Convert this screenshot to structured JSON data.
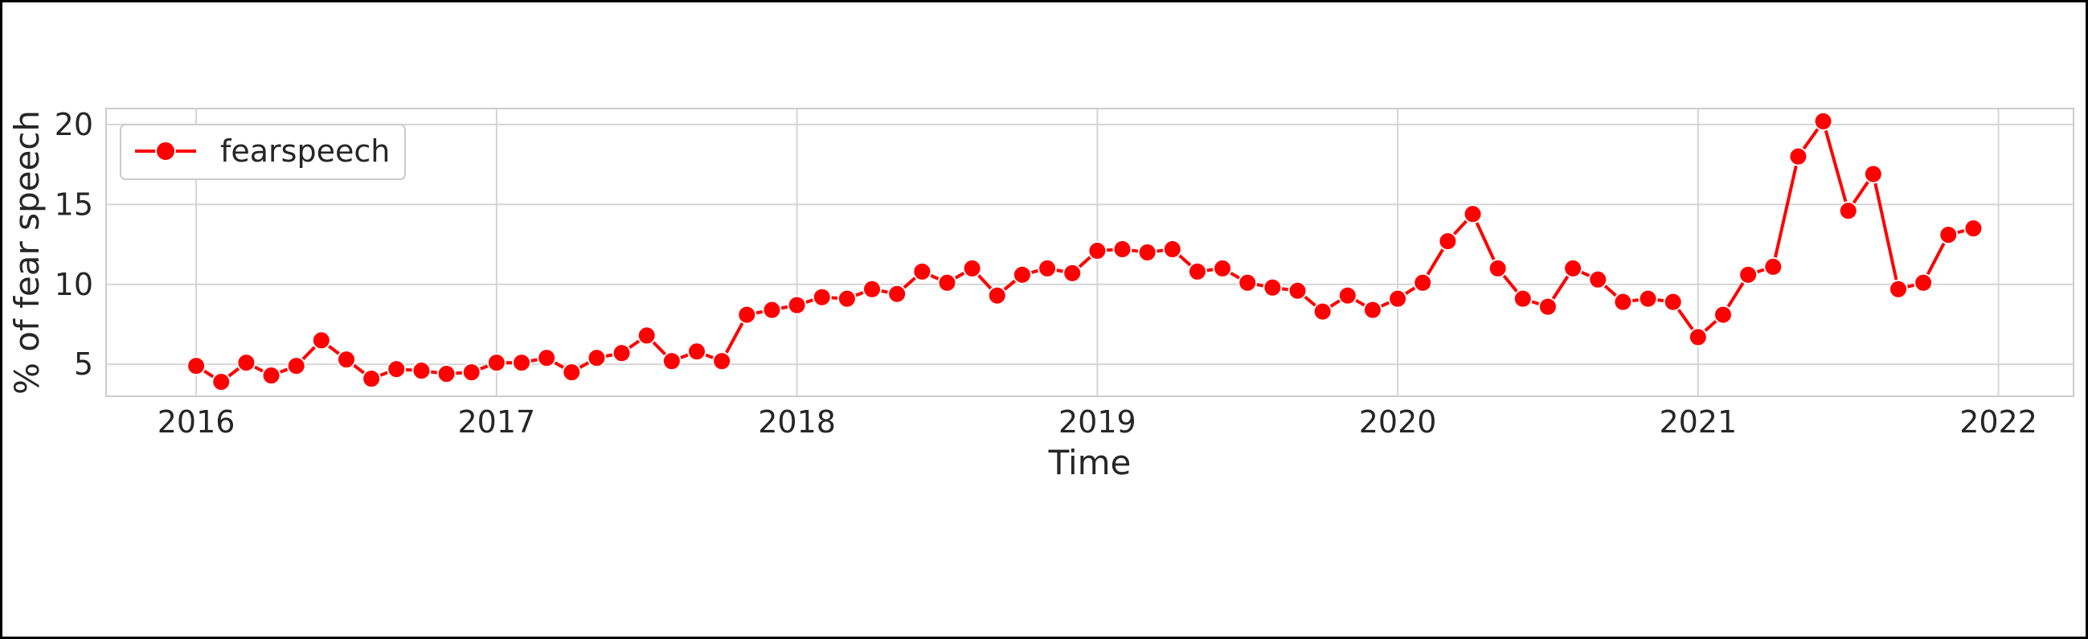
{
  "chart_data": {
    "type": "line",
    "title": "",
    "xlabel": "Time",
    "ylabel": "% of fear speech",
    "x_ticks": [
      "2016",
      "2017",
      "2018",
      "2019",
      "2020",
      "2021",
      "2022"
    ],
    "y_ticks": [
      5,
      10,
      15,
      20
    ],
    "xlim": [
      2015.7,
      2022.25
    ],
    "ylim": [
      3.0,
      21.0
    ],
    "grid": true,
    "legend_position": "top-left",
    "colors": {
      "series": "#ff0000",
      "grid": "#d5d5d5",
      "axes_frame": "#cccccc",
      "text": "#262626"
    },
    "series": [
      {
        "name": "fearspeech",
        "marker": "circle",
        "x": [
          "2016-01",
          "2016-02",
          "2016-03",
          "2016-04",
          "2016-05",
          "2016-06",
          "2016-07",
          "2016-08",
          "2016-09",
          "2016-10",
          "2016-11",
          "2016-12",
          "2017-01",
          "2017-02",
          "2017-03",
          "2017-04",
          "2017-05",
          "2017-06",
          "2017-07",
          "2017-08",
          "2017-09",
          "2017-10",
          "2017-11",
          "2017-12",
          "2018-01",
          "2018-02",
          "2018-03",
          "2018-04",
          "2018-05",
          "2018-06",
          "2018-07",
          "2018-08",
          "2018-09",
          "2018-10",
          "2018-11",
          "2018-12",
          "2019-01",
          "2019-02",
          "2019-03",
          "2019-04",
          "2019-05",
          "2019-06",
          "2019-07",
          "2019-08",
          "2019-09",
          "2019-10",
          "2019-11",
          "2019-12",
          "2020-01",
          "2020-02",
          "2020-03",
          "2020-04",
          "2020-05",
          "2020-06",
          "2020-07",
          "2020-08",
          "2020-09",
          "2020-10",
          "2020-11",
          "2020-12",
          "2021-01",
          "2021-02",
          "2021-03",
          "2021-04",
          "2021-05",
          "2021-06",
          "2021-07",
          "2021-08",
          "2021-09",
          "2021-10",
          "2021-11",
          "2021-12"
        ],
        "values": [
          4.9,
          3.9,
          5.1,
          4.3,
          4.9,
          6.5,
          5.3,
          4.1,
          4.7,
          4.6,
          4.4,
          4.5,
          5.1,
          5.1,
          5.4,
          4.5,
          5.4,
          5.7,
          6.8,
          5.2,
          5.8,
          5.2,
          8.1,
          8.4,
          8.7,
          9.2,
          9.1,
          9.7,
          9.4,
          10.8,
          10.1,
          11.0,
          9.3,
          10.6,
          11.0,
          10.7,
          12.1,
          12.2,
          12.0,
          12.2,
          10.8,
          11.0,
          10.1,
          9.8,
          9.6,
          8.3,
          9.3,
          8.4,
          9.1,
          10.1,
          12.7,
          14.4,
          11.0,
          9.1,
          8.6,
          11.0,
          10.3,
          8.9,
          9.1,
          8.9,
          6.7,
          8.1,
          10.6,
          11.1,
          18.0,
          20.2,
          14.6,
          16.9,
          9.7,
          10.1,
          13.1,
          13.5
        ]
      }
    ]
  }
}
